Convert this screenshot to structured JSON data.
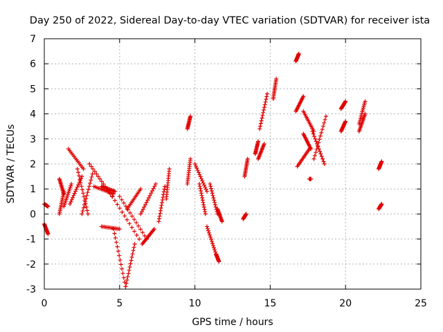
{
  "chart_data": {
    "type": "scatter",
    "title": "Day 250 of 2022, Sidereal Day-to-day VTEC variation (SDTVAR) for receiver ista",
    "xlabel": "GPS time / hours",
    "ylabel": "SDTVAR / TECUs",
    "xlim": [
      0,
      25
    ],
    "ylim": [
      -3,
      7
    ],
    "xticks": [
      "0",
      "5",
      "10",
      "15",
      "20",
      "25"
    ],
    "yticks": [
      "-3",
      "-2",
      "-1",
      "0",
      "1",
      "2",
      "3",
      "4",
      "5",
      "6",
      "7"
    ],
    "grid": true,
    "marker": "plus",
    "color": "#e00000",
    "segments": [
      {
        "x": [
          0.0,
          0.25
        ],
        "y": [
          0.4,
          0.3
        ]
      },
      {
        "x": [
          0.0,
          0.25
        ],
        "y": [
          -0.4,
          -0.8
        ]
      },
      {
        "x": [
          1.0,
          1.3
        ],
        "y": [
          0.0,
          0.9
        ]
      },
      {
        "x": [
          1.0,
          1.3
        ],
        "y": [
          1.4,
          0.8
        ]
      },
      {
        "x": [
          1.3,
          1.8
        ],
        "y": [
          0.3,
          1.2
        ]
      },
      {
        "x": [
          1.6,
          2.6
        ],
        "y": [
          2.6,
          1.8
        ]
      },
      {
        "x": [
          1.7,
          2.5
        ],
        "y": [
          0.4,
          1.5
        ]
      },
      {
        "x": [
          2.2,
          2.9
        ],
        "y": [
          1.8,
          0.0
        ]
      },
      {
        "x": [
          2.5,
          3.2
        ],
        "y": [
          0.0,
          1.6
        ]
      },
      {
        "x": [
          3.0,
          4.5
        ],
        "y": [
          2.0,
          0.7
        ]
      },
      {
        "x": [
          3.3,
          4.6
        ],
        "y": [
          1.1,
          0.8
        ]
      },
      {
        "x": [
          3.8,
          4.7
        ],
        "y": [
          1.1,
          0.9
        ]
      },
      {
        "x": [
          3.8,
          5.0
        ],
        "y": [
          -0.5,
          -0.6
        ]
      },
      {
        "x": [
          4.2,
          6.3
        ],
        "y": [
          1.0,
          -1.0
        ]
      },
      {
        "x": [
          4.6,
          5.4
        ],
        "y": [
          -0.6,
          -2.9
        ]
      },
      {
        "x": [
          5.4,
          6.0
        ],
        "y": [
          -2.9,
          -1.2
        ]
      },
      {
        "x": [
          5.0,
          6.8
        ],
        "y": [
          0.7,
          -1.0
        ]
      },
      {
        "x": [
          5.5,
          6.4
        ],
        "y": [
          0.2,
          1.0
        ]
      },
      {
        "x": [
          6.5,
          7.3
        ],
        "y": [
          -1.2,
          -0.6
        ]
      },
      {
        "x": [
          6.4,
          7.4
        ],
        "y": [
          0.0,
          1.2
        ]
      },
      {
        "x": [
          7.6,
          8.0
        ],
        "y": [
          -0.3,
          1.1
        ]
      },
      {
        "x": [
          8.1,
          8.3
        ],
        "y": [
          0.6,
          1.8
        ]
      },
      {
        "x": [
          9.5,
          9.7
        ],
        "y": [
          3.4,
          3.9
        ]
      },
      {
        "x": [
          9.5,
          9.7
        ],
        "y": [
          1.2,
          2.2
        ]
      },
      {
        "x": [
          10.0,
          10.8
        ],
        "y": [
          2.0,
          0.9
        ]
      },
      {
        "x": [
          10.3,
          10.7
        ],
        "y": [
          1.2,
          0.0
        ]
      },
      {
        "x": [
          10.8,
          11.4
        ],
        "y": [
          -0.5,
          -1.6
        ]
      },
      {
        "x": [
          11.0,
          11.5
        ],
        "y": [
          1.2,
          0.0
        ]
      },
      {
        "x": [
          11.4,
          11.6
        ],
        "y": [
          -1.6,
          -1.9
        ]
      },
      {
        "x": [
          11.5,
          11.8
        ],
        "y": [
          0.2,
          -0.3
        ]
      },
      {
        "x": [
          13.2,
          13.4
        ],
        "y": [
          -0.2,
          0.0
        ]
      },
      {
        "x": [
          13.3,
          13.5
        ],
        "y": [
          1.5,
          2.2
        ]
      },
      {
        "x": [
          14.0,
          14.2
        ],
        "y": [
          2.4,
          2.9
        ]
      },
      {
        "x": [
          14.2,
          14.6
        ],
        "y": [
          2.2,
          2.8
        ]
      },
      {
        "x": [
          14.3,
          14.8
        ],
        "y": [
          3.4,
          4.8
        ]
      },
      {
        "x": [
          15.2,
          15.4
        ],
        "y": [
          4.6,
          5.4
        ]
      },
      {
        "x": [
          16.7,
          16.9
        ],
        "y": [
          6.1,
          6.4
        ]
      },
      {
        "x": [
          16.7,
          17.2
        ],
        "y": [
          4.1,
          4.7
        ]
      },
      {
        "x": [
          16.8,
          17.6
        ],
        "y": [
          1.9,
          2.6
        ]
      },
      {
        "x": [
          17.2,
          17.9
        ],
        "y": [
          4.1,
          3.3
        ]
      },
      {
        "x": [
          17.2,
          17.7
        ],
        "y": [
          3.2,
          2.6
        ]
      },
      {
        "x": [
          17.8,
          18.6
        ],
        "y": [
          3.3,
          2.0
        ]
      },
      {
        "x": [
          17.9,
          18.7
        ],
        "y": [
          2.2,
          3.9
        ]
      },
      {
        "x": [
          17.6,
          17.7
        ],
        "y": [
          1.4,
          1.4
        ]
      },
      {
        "x": [
          19.7,
          20.0
        ],
        "y": [
          4.2,
          4.5
        ]
      },
      {
        "x": [
          19.7,
          20.0
        ],
        "y": [
          3.3,
          3.7
        ]
      },
      {
        "x": [
          20.9,
          21.3
        ],
        "y": [
          3.6,
          4.5
        ]
      },
      {
        "x": [
          20.9,
          21.3
        ],
        "y": [
          3.3,
          4.0
        ]
      },
      {
        "x": [
          22.2,
          22.4
        ],
        "y": [
          1.8,
          2.1
        ]
      },
      {
        "x": [
          22.2,
          22.4
        ],
        "y": [
          0.2,
          0.4
        ]
      }
    ]
  }
}
